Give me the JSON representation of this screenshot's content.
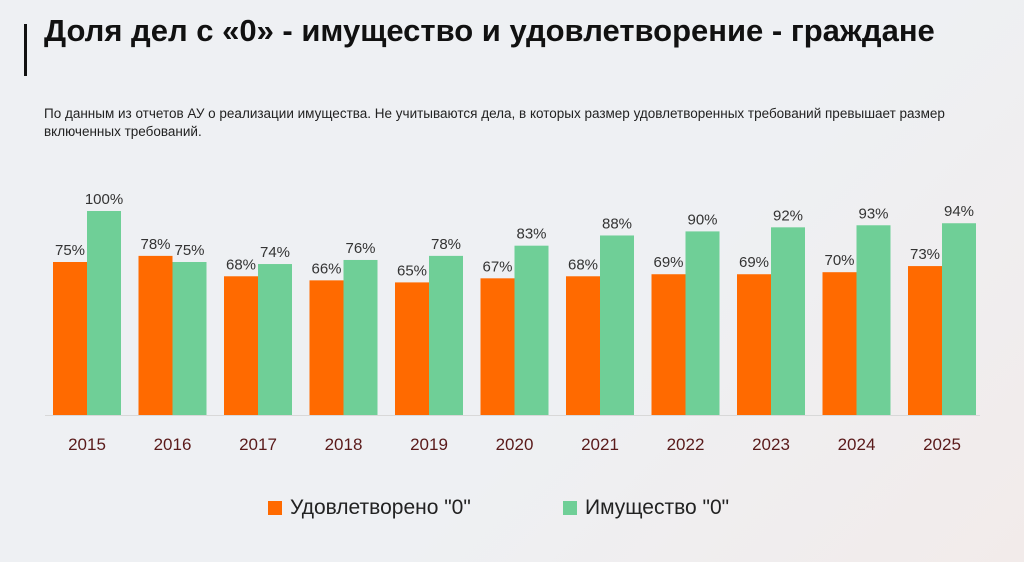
{
  "title": "Доля дел с «0» - имущество и удовлетворение - граждане",
  "subtitle": "По данным из отчетов АУ о реализации  имущества. Не учитываются дела, в которых размер удовлетворенных требований превышает размер включенных требований.",
  "chart_data": {
    "type": "bar",
    "title": "Доля дел с «0» - имущество и удовлетворение - граждане",
    "xlabel": "",
    "ylabel": "",
    "ylim": [
      0,
      100
    ],
    "grid": false,
    "legend_position": "bottom",
    "categories": [
      "2015",
      "2016",
      "2017",
      "2018",
      "2019",
      "2020",
      "2021",
      "2022",
      "2023",
      "2024",
      "2025"
    ],
    "series": [
      {
        "name": "Удовлетворено \"0\"",
        "color": "#ff6a00",
        "values": [
          75,
          78,
          68,
          66,
          65,
          67,
          68,
          69,
          69,
          70,
          73
        ]
      },
      {
        "name": "Имущество \"0\"",
        "color": "#6fcf97",
        "values": [
          100,
          75,
          74,
          76,
          78,
          83,
          88,
          90,
          92,
          93,
          94
        ]
      }
    ]
  }
}
